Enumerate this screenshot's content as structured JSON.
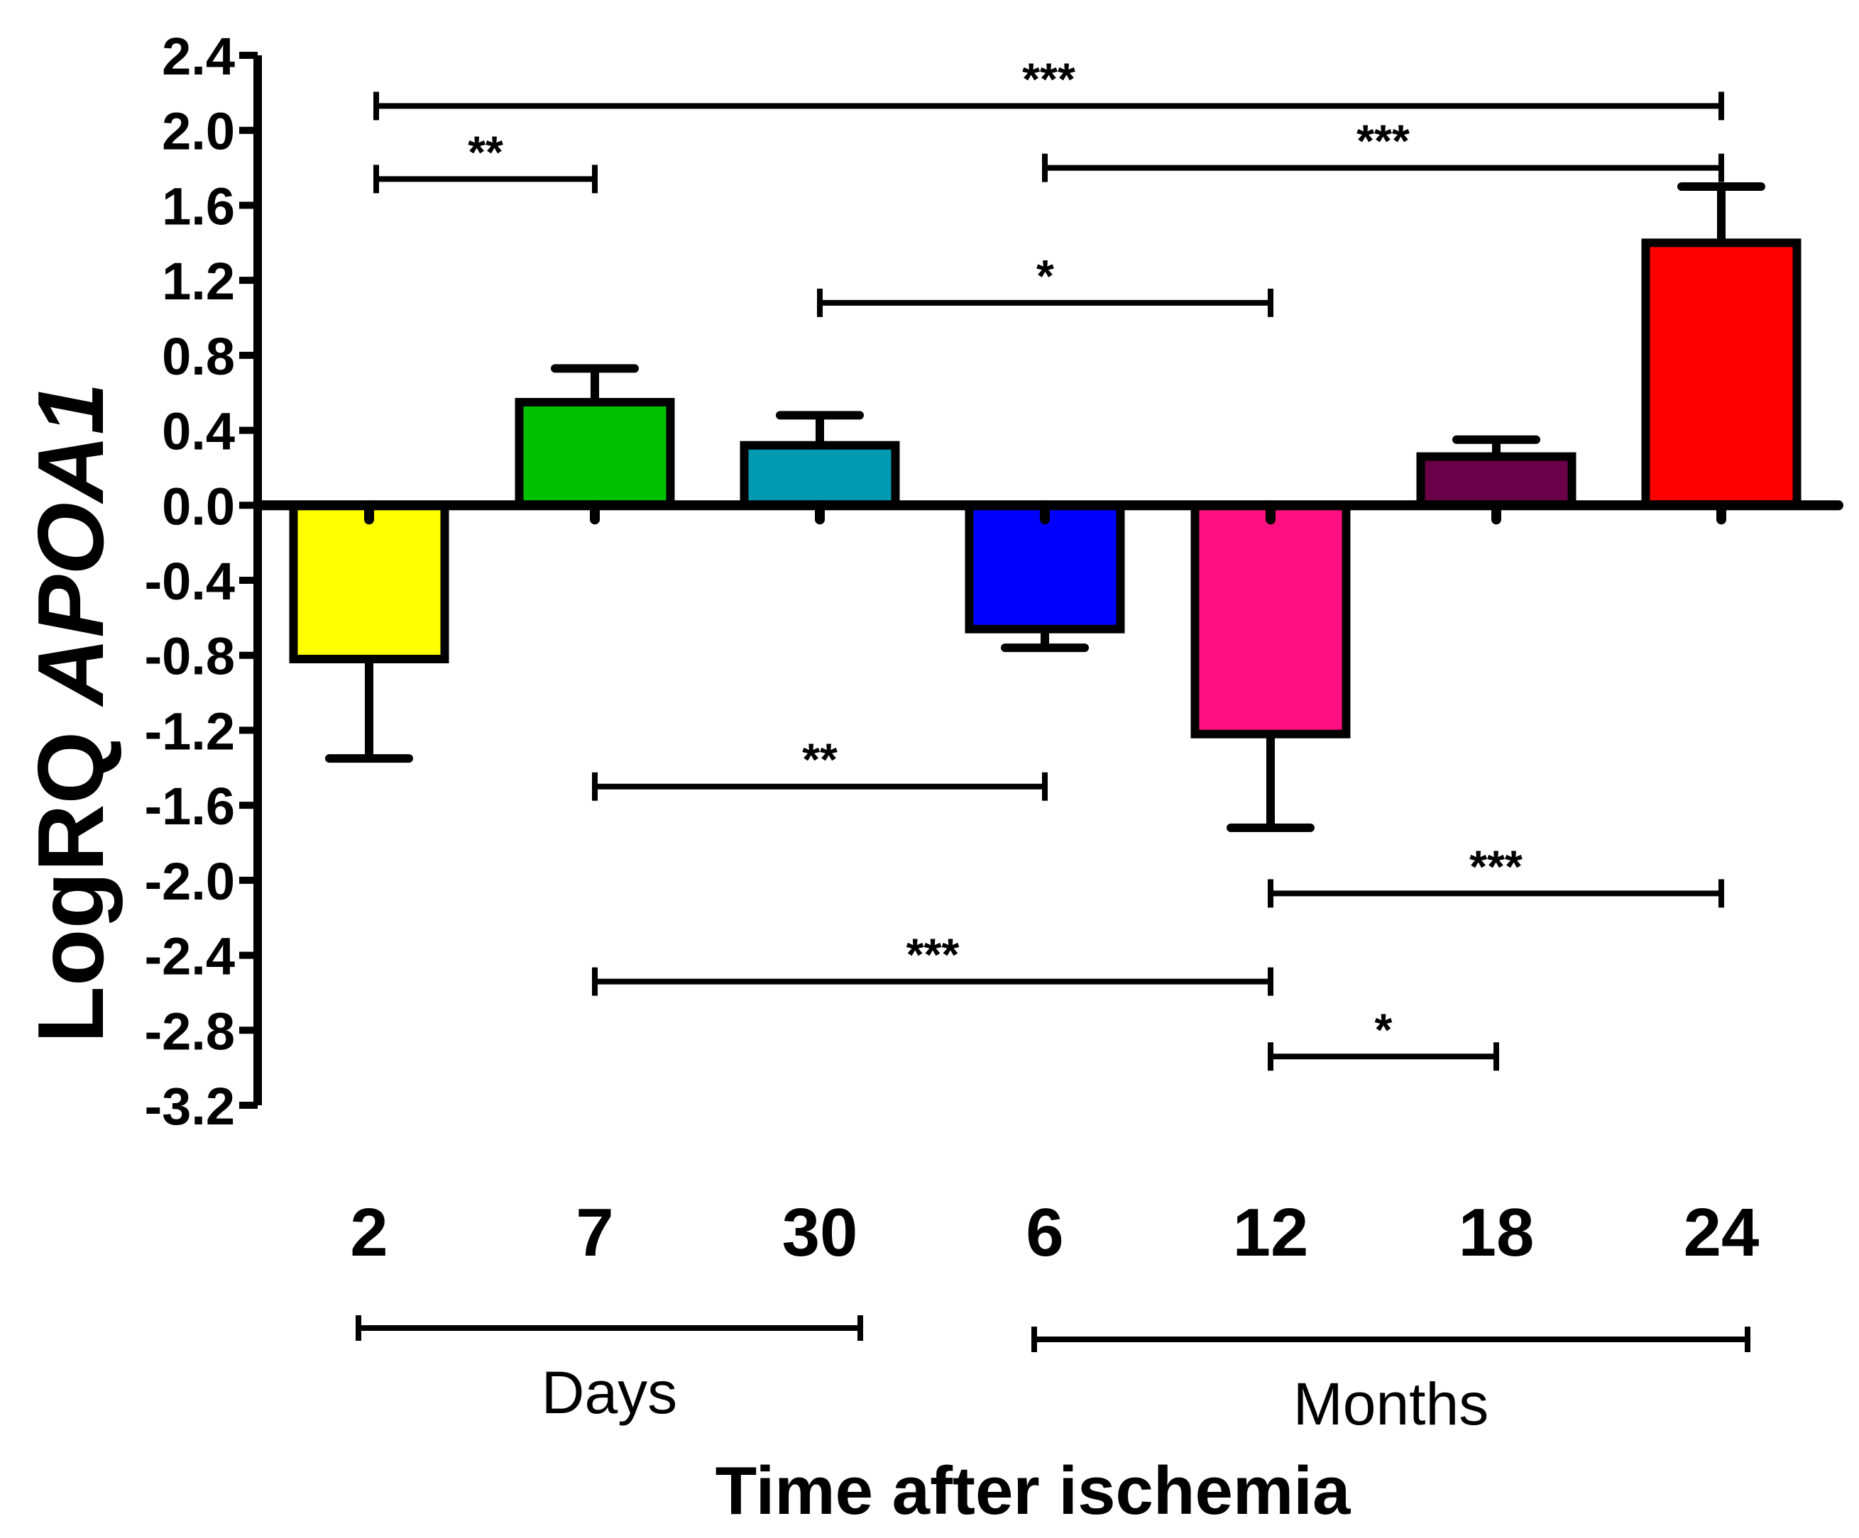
{
  "chart_data": {
    "type": "bar",
    "title": "",
    "xlabel": "Time after ischemia",
    "ylabel": "LogRQ",
    "ylabel_gene": "APOA1",
    "ylim": [
      -3.2,
      2.4
    ],
    "yticks": [
      2.4,
      2.0,
      1.6,
      1.2,
      0.8,
      0.4,
      0.0,
      -0.4,
      -0.8,
      -1.2,
      -1.6,
      -2.0,
      -2.4,
      -2.8,
      -3.2
    ],
    "ytick_labels": [
      "2.4",
      "2.0",
      "1.6",
      "1.2",
      "0.8",
      "0.4",
      "0.0",
      "-0.4",
      "-0.8",
      "-1.2",
      "-1.6",
      "-2.0",
      "-2.4",
      "-2.8",
      "-3.2"
    ],
    "categories": [
      "2",
      "7",
      "30",
      "6",
      "12",
      "18",
      "24"
    ],
    "values": [
      -0.82,
      0.55,
      0.32,
      -0.66,
      -1.22,
      0.26,
      1.4
    ],
    "errors": [
      0.53,
      0.18,
      0.16,
      0.1,
      0.5,
      0.09,
      0.3
    ],
    "error_direction": [
      "down",
      "up",
      "up",
      "down",
      "down",
      "up",
      "up"
    ],
    "colors": [
      "#ffff00",
      "#00c000",
      "#009ab0",
      "#0000ff",
      "#ff1080",
      "#6a0048",
      "#ff0000"
    ],
    "groups": [
      {
        "label": "Days",
        "from": 0,
        "to": 2
      },
      {
        "label": "Months",
        "from": 3,
        "to": 6
      }
    ],
    "significance": [
      {
        "from": 0,
        "to": 6,
        "y": 2.13,
        "label": "***"
      },
      {
        "from": 0,
        "to": 1,
        "y": 1.74,
        "label": "**"
      },
      {
        "from": 3,
        "to": 6,
        "y": 1.8,
        "label": "***"
      },
      {
        "from": 2,
        "to": 4,
        "y": 1.08,
        "label": "*"
      },
      {
        "from": 1,
        "to": 3,
        "y": -1.5,
        "label": "**"
      },
      {
        "from": 4,
        "to": 6,
        "y": -2.07,
        "label": "***"
      },
      {
        "from": 1,
        "to": 4,
        "y": -2.54,
        "label": "***"
      },
      {
        "from": 4,
        "to": 5,
        "y": -2.94,
        "label": "*"
      }
    ]
  }
}
